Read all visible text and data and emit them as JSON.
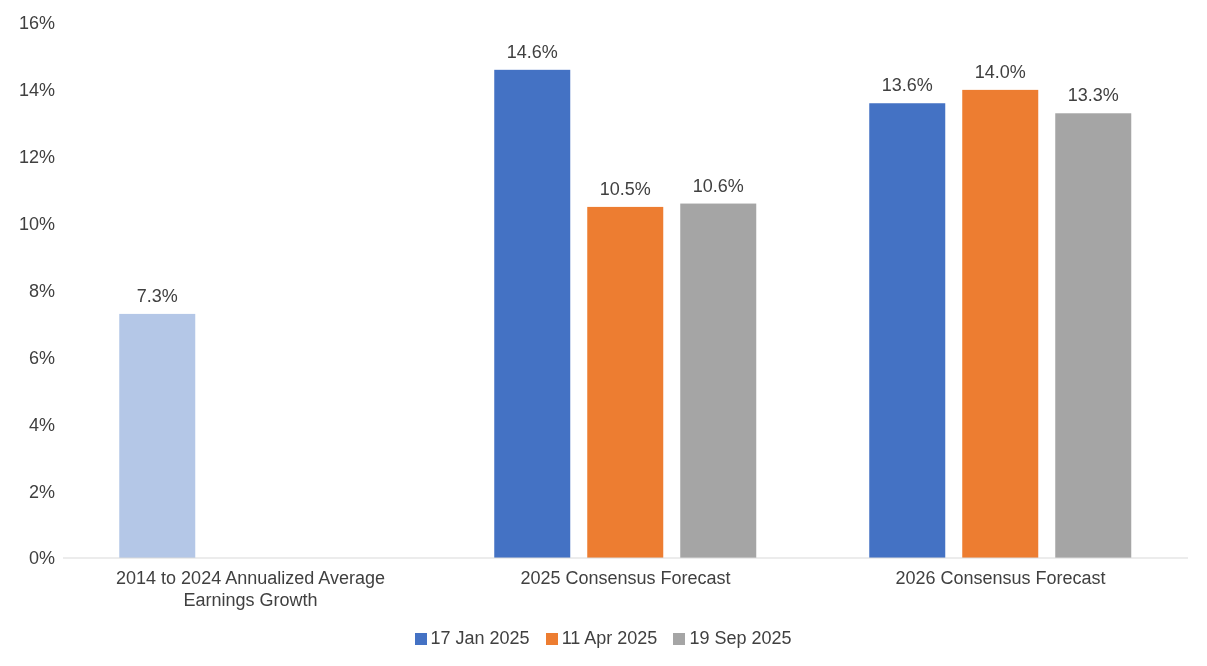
{
  "chart_data": {
    "type": "bar",
    "categories": [
      "2014 to 2024 Annualized Average Earnings Growth",
      "2025 Consensus Forecast",
      "2026 Consensus Forecast"
    ],
    "series": [
      {
        "name": "17 Jan 2025",
        "color": "#4472c4",
        "colors": [
          "#b4c7e7",
          "#4472c4",
          "#4472c4"
        ],
        "values": [
          7.3,
          14.6,
          13.6
        ],
        "value_labels": [
          "7.3%",
          "14.6%",
          "13.6%"
        ]
      },
      {
        "name": "11 Apr 2025",
        "color": "#ed7d31",
        "values": [
          null,
          10.5,
          14.0
        ],
        "value_labels": [
          null,
          "10.5%",
          "14.0%"
        ]
      },
      {
        "name": "19 Sep 2025",
        "color": "#a5a5a5",
        "values": [
          null,
          10.6,
          13.3
        ],
        "value_labels": [
          null,
          "10.6%",
          "13.3%"
        ]
      }
    ],
    "ylim": [
      0,
      16
    ],
    "yticks": [
      {
        "value": 0,
        "label": "0%"
      },
      {
        "value": 2,
        "label": "2%"
      },
      {
        "value": 4,
        "label": "4%"
      },
      {
        "value": 6,
        "label": "6%"
      },
      {
        "value": 8,
        "label": "8%"
      },
      {
        "value": 10,
        "label": "10%"
      },
      {
        "value": 12,
        "label": "12%"
      },
      {
        "value": 14,
        "label": "14%"
      },
      {
        "value": 16,
        "label": "16%"
      }
    ],
    "grid": false,
    "legend": "bottom"
  }
}
